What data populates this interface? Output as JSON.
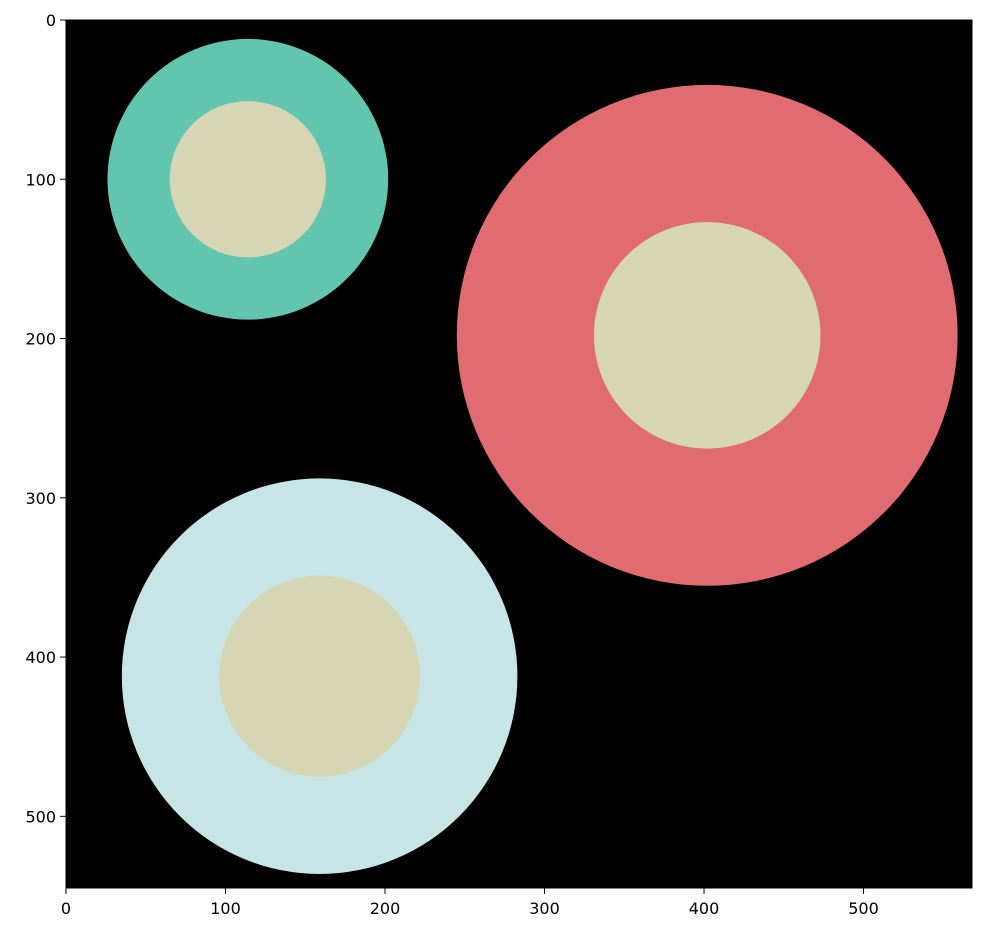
{
  "chart_data": {
    "type": "image",
    "title": "",
    "xlabel": "",
    "ylabel": "",
    "xlim": [
      0,
      568
    ],
    "ylim": [
      545,
      0
    ],
    "y_inverted": true,
    "grid": false,
    "background_color": "#000000",
    "x_ticks": [
      0,
      100,
      200,
      300,
      400,
      500
    ],
    "y_ticks": [
      0,
      100,
      200,
      300,
      400,
      500
    ],
    "circles": [
      {
        "cx": 114,
        "cy": 100,
        "outer_r": 88,
        "inner_r": 49,
        "outer_color": "#62c5ae",
        "inner_color": "#d7d6b4"
      },
      {
        "cx": 402,
        "cy": 198,
        "outer_r": 157,
        "inner_r": 71,
        "outer_color": "#e06b70",
        "inner_color": "#d7d6b4"
      },
      {
        "cx": 159,
        "cy": 412,
        "outer_r": 124,
        "inner_r": 63,
        "outer_color": "#c7e5e7",
        "inner_color": "#d7d6b4"
      }
    ]
  }
}
